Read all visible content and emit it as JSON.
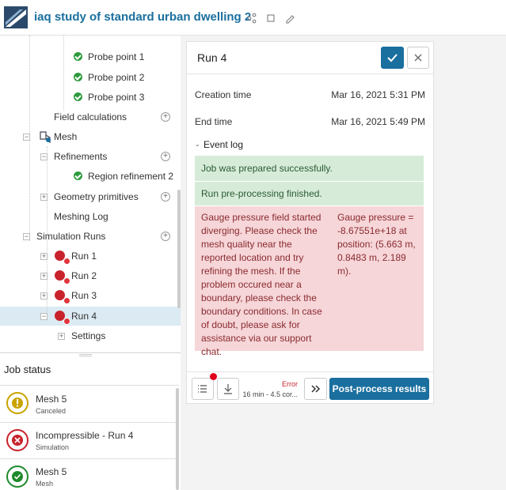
{
  "header": {
    "title": "iaq study of standard urban dwelling 2"
  },
  "tree": {
    "items": [
      "Probe point 1",
      "Probe point 2",
      "Probe point 3",
      "Field calculations",
      "Mesh",
      "Refinements",
      "Region refinement 2",
      "Geometry primitives",
      "Meshing Log",
      "Simulation Runs",
      "Run 1",
      "Run 2",
      "Run 3",
      "Run 4",
      "Settings"
    ]
  },
  "job_status": {
    "title": "Job status",
    "jobs": [
      {
        "name": "Mesh 5",
        "status": "Canceled"
      },
      {
        "name": "Incompressible - Run 4",
        "status": "Simulation"
      },
      {
        "name": "Mesh 5",
        "status": "Mesh"
      }
    ]
  },
  "run_panel": {
    "title": "Run 4",
    "fields": [
      {
        "label": "Creation time",
        "value": "Mar 16, 2021 5:31 PM"
      },
      {
        "label": "End time",
        "value": "Mar 16, 2021 5:49 PM"
      }
    ],
    "event_log": {
      "title": "Event log",
      "messages": [
        "Job was prepared successfully.",
        "Run pre-processing finished."
      ],
      "error": {
        "text": "Gauge pressure field started diverging. Please check the mesh quality near the reported location and try refining the mesh. If the problem occured near a boundary, please check the boundary conditions. In case of doubt, please ask for assistance via our support chat.",
        "detail": "Gauge pressure = -8.67551e+18 at position: (5.663 m, 0.8483 m, 2.189 m)."
      }
    },
    "footer": {
      "status": "Error",
      "detail": "16 min - 4.5 cor...",
      "button": "Post-process results"
    }
  }
}
